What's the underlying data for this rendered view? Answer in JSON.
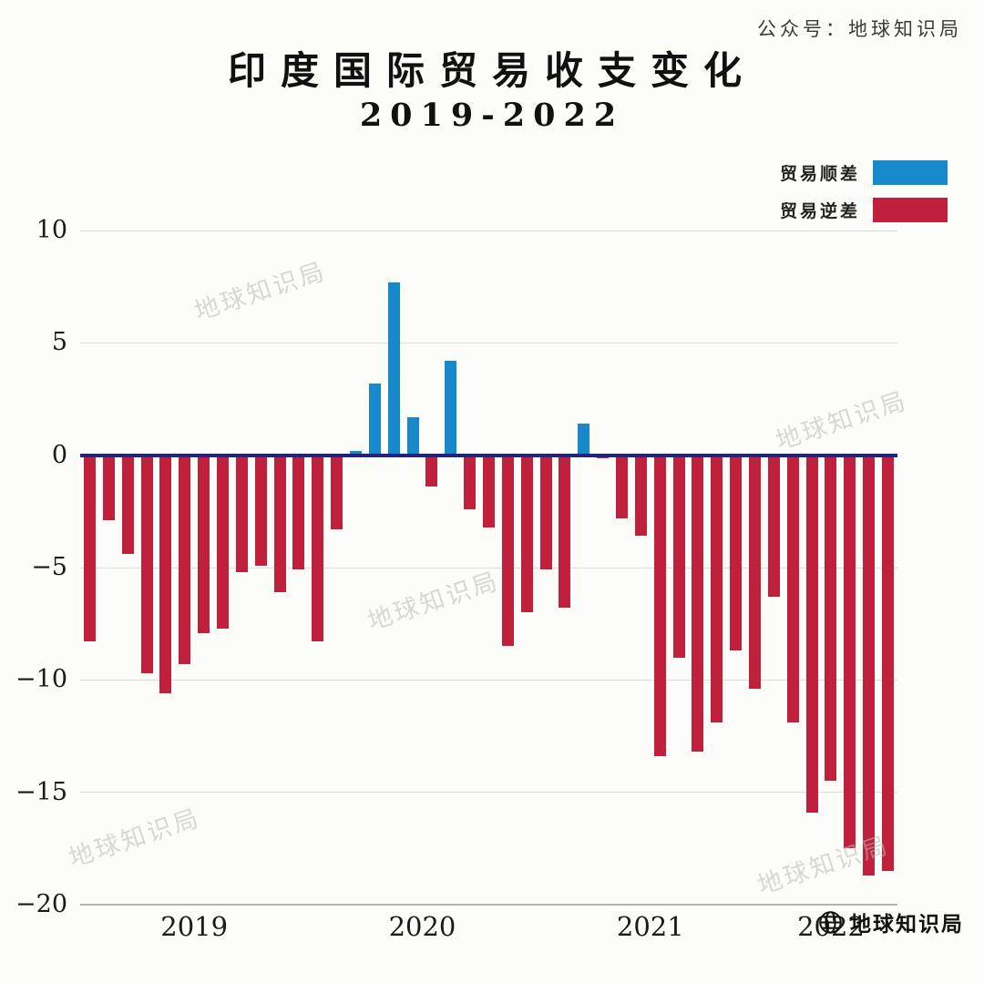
{
  "header": {
    "account_label": "公众号：地球知识局",
    "title": "印度国际贸易收支变化",
    "subtitle": "2019-2022"
  },
  "legend": [
    {
      "label": "贸易顺差",
      "color": "#1789ca"
    },
    {
      "label": "贸易逆差",
      "color": "#c0203c"
    }
  ],
  "watermark": {
    "text": "地球知识局"
  },
  "brand": {
    "text": "地球知识局"
  },
  "chart_data": {
    "type": "bar",
    "title": "印度国际贸易收支变化",
    "subtitle": "2019-2022",
    "ylabel": "",
    "xlabel": "",
    "ylim": [
      -20,
      10
    ],
    "yticks": [
      10,
      5,
      0,
      -5,
      -10,
      -15,
      -20
    ],
    "xticks": [
      "2019",
      "2020",
      "2021",
      "2022"
    ],
    "grid": "horizontal",
    "legend_position": "top-right",
    "colors": {
      "surplus": "#1789ca",
      "deficit": "#c0203c",
      "zero_line": "#23237a",
      "gridline": "#dcdcdc"
    },
    "categories": [
      "2019-01",
      "2019-02",
      "2019-03",
      "2019-04",
      "2019-05",
      "2019-06",
      "2019-07",
      "2019-08",
      "2019-09",
      "2019-10",
      "2019-11",
      "2019-12",
      "2020-01",
      "2020-02",
      "2020-03",
      "2020-04",
      "2020-05",
      "2020-06",
      "2020-07",
      "2020-08",
      "2020-09",
      "2020-10",
      "2020-11",
      "2020-12",
      "2021-01",
      "2021-02",
      "2021-03",
      "2021-04",
      "2021-05",
      "2021-06",
      "2021-07",
      "2021-08",
      "2021-09",
      "2021-10",
      "2021-11",
      "2021-12",
      "2022-01",
      "2022-02",
      "2022-03",
      "2022-04",
      "2022-05",
      "2022-06",
      "2022-07"
    ],
    "values": [
      -8.3,
      -2.9,
      -4.4,
      -9.7,
      -10.6,
      -9.3,
      -7.9,
      -7.7,
      -5.2,
      -4.9,
      -6.1,
      -5.1,
      -8.3,
      -3.3,
      0.2,
      3.2,
      7.7,
      1.7,
      -1.4,
      4.2,
      -2.4,
      -3.2,
      -8.5,
      -7.0,
      -5.1,
      -6.8,
      1.4,
      -0.15,
      -2.8,
      -3.6,
      -13.4,
      -9.0,
      -13.2,
      -11.9,
      -8.7,
      -10.4,
      -6.3,
      -11.9,
      -15.9,
      -14.5,
      -17.5,
      -18.7,
      -18.5
    ]
  }
}
